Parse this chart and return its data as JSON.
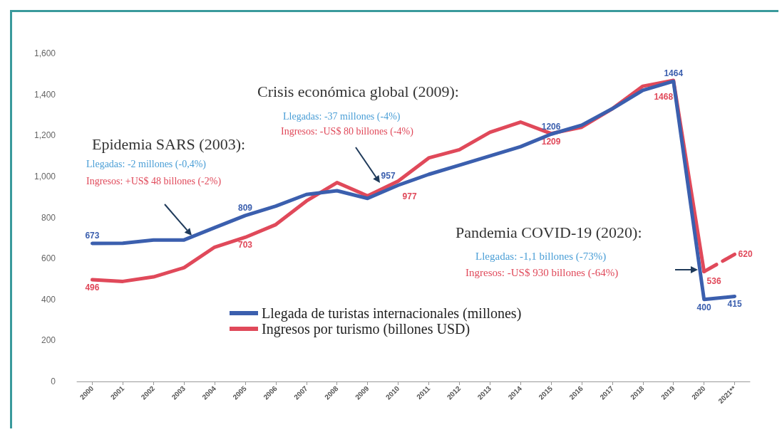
{
  "chart_data": {
    "type": "line",
    "categories": [
      "2000",
      "2001",
      "2002",
      "2003",
      "2004",
      "2005",
      "2006",
      "2007",
      "2008",
      "2009",
      "2010",
      "2011",
      "2012",
      "2013",
      "2014",
      "2015",
      "2016",
      "2017",
      "2018",
      "2019",
      "2020",
      "2021**"
    ],
    "series": [
      {
        "name": "Llegada de turistas internacionales (millones)",
        "color": "#3b5fae",
        "values": [
          673,
          674,
          690,
          690,
          750,
          809,
          855,
          912,
          930,
          893,
          957,
          1010,
          1055,
          1100,
          1145,
          1206,
          1250,
          1330,
          1420,
          1464,
          400,
          415
        ],
        "value_labels": [
          "673",
          null,
          null,
          null,
          null,
          "809",
          null,
          null,
          null,
          null,
          "957",
          null,
          null,
          null,
          null,
          "1206",
          null,
          null,
          null,
          "1464",
          "400",
          "415"
        ]
      },
      {
        "name": "Ingresos por turismo (billones USD)",
        "color": "#e0495a",
        "values": [
          496,
          488,
          510,
          555,
          655,
          703,
          765,
          880,
          970,
          905,
          977,
          1090,
          1130,
          1215,
          1265,
          1209,
          1240,
          1330,
          1440,
          1468,
          536,
          null
        ],
        "value_labels": [
          "496",
          null,
          null,
          null,
          null,
          "703",
          null,
          null,
          null,
          null,
          "977",
          null,
          null,
          null,
          null,
          "1209",
          null,
          null,
          null,
          "1468",
          "536",
          null
        ]
      },
      {
        "color": "#e0495a",
        "line_style": "dashed",
        "values": [
          null,
          null,
          null,
          null,
          null,
          null,
          null,
          null,
          null,
          null,
          null,
          null,
          null,
          null,
          null,
          null,
          null,
          null,
          null,
          null,
          536,
          620
        ],
        "value_labels": [
          null,
          null,
          null,
          null,
          null,
          null,
          null,
          null,
          null,
          null,
          null,
          null,
          null,
          null,
          null,
          null,
          null,
          null,
          null,
          null,
          null,
          "620"
        ]
      }
    ],
    "ylim": [
      0,
      1600
    ],
    "yticks": [
      0,
      200,
      400,
      600,
      800,
      {
        "value": 1000,
        "label": "1,000"
      },
      {
        "value": 1200,
        "label": "1,200"
      },
      {
        "value": 1400,
        "label": "1,400"
      },
      {
        "value": 1600,
        "label": "1,600"
      }
    ],
    "grid": false,
    "legend": "bottom",
    "marker": "none",
    "line_style": "solid",
    "annotations": [
      "Epidemia SARS (2003):",
      "Llegadas: -2 millones (-0,4%)",
      "Ingresos: +US$ 48 billones (-2%)",
      "Crisis económica global (2009):",
      "Llegadas: -37 millones (-4%)",
      "Ingresos: -US$ 80 billones (-4%)",
      "Pandemia COVID-19 (2020):",
      "Llegadas: -1,1 billones (-73%)",
      "Ingresos: -US$ 930 billones (-64%)"
    ]
  }
}
